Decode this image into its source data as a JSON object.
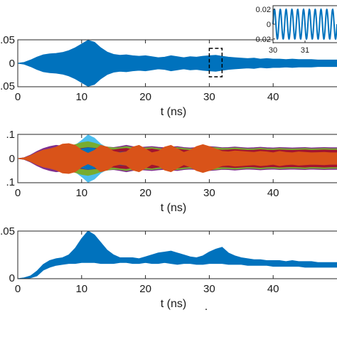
{
  "chart_data": [
    {
      "type": "area",
      "panel": "top",
      "xlabel": "t (ns)",
      "ylabel": "",
      "xlim": [
        0,
        50
      ],
      "ylim": [
        -0.05,
        0.05
      ],
      "xticks": [
        0,
        10,
        20,
        30,
        40
      ],
      "yticks": [
        -0.05,
        0,
        0.05
      ],
      "ytick_labels": [
        ".05",
        "0",
        ".05"
      ],
      "grid": false,
      "highlight_box_x": [
        30,
        32
      ],
      "colors": {
        "fill": "#0072BD",
        "box": "#000000"
      },
      "series": [
        {
          "x": [
            0,
            1,
            2,
            3,
            4,
            5,
            6,
            7,
            8,
            9,
            10,
            11,
            12,
            13,
            14,
            15,
            16,
            17,
            18,
            19,
            20,
            21,
            22,
            23,
            24,
            25,
            26,
            27,
            28,
            29,
            30,
            31,
            32,
            33,
            34,
            35,
            36,
            37,
            38,
            39,
            40,
            41,
            42,
            43,
            44,
            45,
            46,
            47,
            48,
            49,
            50
          ],
          "envelope": [
            0,
            0.002,
            0.007,
            0.013,
            0.018,
            0.02,
            0.021,
            0.023,
            0.027,
            0.033,
            0.041,
            0.049,
            0.045,
            0.033,
            0.024,
            0.019,
            0.017,
            0.018,
            0.016,
            0.015,
            0.016,
            0.014,
            0.012,
            0.013,
            0.016,
            0.014,
            0.012,
            0.014,
            0.013,
            0.015,
            0.016,
            0.017,
            0.015,
            0.013,
            0.012,
            0.011,
            0.01,
            0.011,
            0.009,
            0.01,
            0.009,
            0.009,
            0.008,
            0.009,
            0.008,
            0.008,
            0.008,
            0.007,
            0.007,
            0.007,
            0.007
          ]
        }
      ]
    },
    {
      "type": "line",
      "panel": "top-inset",
      "xlabel": "",
      "ylabel": "",
      "xlim": [
        30,
        32
      ],
      "ylim": [
        -0.025,
        0.025
      ],
      "xticks": [
        30,
        31
      ],
      "yticks": [
        0.02,
        0,
        -0.02
      ],
      "ytick_labels": [
        "0.02",
        "0",
        "-0.02"
      ],
      "series": [
        {
          "amplitude": 0.02,
          "cycles_per_ns": 5.5
        }
      ]
    },
    {
      "type": "area",
      "panel": "middle",
      "xlabel": "t (ns)",
      "ylabel": "",
      "xlim": [
        0,
        50
      ],
      "ylim": [
        -0.1,
        0.1
      ],
      "xticks": [
        0,
        10,
        20,
        30,
        40
      ],
      "yticks": [
        -0.1,
        0,
        0.1
      ],
      "ytick_labels": [
        ".1",
        "0",
        ".1"
      ],
      "grid": false,
      "x": [
        0,
        1,
        2,
        3,
        4,
        5,
        6,
        7,
        8,
        9,
        10,
        11,
        12,
        13,
        14,
        15,
        16,
        17,
        18,
        19,
        20,
        21,
        22,
        23,
        24,
        25,
        26,
        27,
        28,
        29,
        30,
        31,
        32,
        33,
        34,
        35,
        36,
        37,
        38,
        39,
        40,
        41,
        42,
        43,
        44,
        45,
        46,
        47,
        48,
        49,
        50
      ],
      "series": [
        {
          "color": "#4DBEEE",
          "envelope": [
            0,
            0.003,
            0.012,
            0.022,
            0.028,
            0.032,
            0.035,
            0.04,
            0.045,
            0.055,
            0.075,
            0.098,
            0.085,
            0.06,
            0.045,
            0.038,
            0.035,
            0.036,
            0.033,
            0.03,
            0.032,
            0.03,
            0.028,
            0.03,
            0.034,
            0.03,
            0.028,
            0.03,
            0.03,
            0.034,
            0.036,
            0.038,
            0.034,
            0.03,
            0.028,
            0.026,
            0.025,
            0.026,
            0.024,
            0.025,
            0.024,
            0.024,
            0.023,
            0.024,
            0.023,
            0.023,
            0.023,
            0.022,
            0.022,
            0.022,
            0.022
          ]
        },
        {
          "color": "#7E2F8E",
          "envelope": [
            0,
            0.004,
            0.015,
            0.03,
            0.042,
            0.05,
            0.055,
            0.052,
            0.048,
            0.05,
            0.055,
            0.06,
            0.056,
            0.05,
            0.048,
            0.046,
            0.05,
            0.055,
            0.05,
            0.046,
            0.048,
            0.05,
            0.047,
            0.045,
            0.048,
            0.05,
            0.046,
            0.044,
            0.046,
            0.048,
            0.05,
            0.048,
            0.045,
            0.046,
            0.048,
            0.046,
            0.044,
            0.045,
            0.047,
            0.045,
            0.044,
            0.046,
            0.045,
            0.044,
            0.045,
            0.046,
            0.044,
            0.045,
            0.046,
            0.045,
            0.045
          ]
        },
        {
          "color": "#EDB120",
          "envelope": [
            0,
            0.003,
            0.01,
            0.02,
            0.03,
            0.036,
            0.04,
            0.038,
            0.036,
            0.04,
            0.045,
            0.05,
            0.046,
            0.042,
            0.04,
            0.038,
            0.042,
            0.044,
            0.04,
            0.038,
            0.04,
            0.042,
            0.038,
            0.036,
            0.04,
            0.042,
            0.038,
            0.036,
            0.038,
            0.04,
            0.042,
            0.04,
            0.037,
            0.038,
            0.04,
            0.038,
            0.036,
            0.037,
            0.039,
            0.037,
            0.036,
            0.038,
            0.037,
            0.036,
            0.037,
            0.038,
            0.036,
            0.037,
            0.038,
            0.037,
            0.037
          ]
        },
        {
          "color": "#77AC30",
          "envelope": [
            0,
            0.003,
            0.012,
            0.024,
            0.034,
            0.04,
            0.044,
            0.046,
            0.05,
            0.058,
            0.066,
            0.07,
            0.064,
            0.055,
            0.048,
            0.044,
            0.046,
            0.05,
            0.046,
            0.042,
            0.044,
            0.046,
            0.042,
            0.04,
            0.044,
            0.046,
            0.042,
            0.04,
            0.042,
            0.045,
            0.047,
            0.045,
            0.042,
            0.042,
            0.044,
            0.042,
            0.04,
            0.041,
            0.043,
            0.041,
            0.04,
            0.042,
            0.041,
            0.04,
            0.041,
            0.042,
            0.04,
            0.041,
            0.042,
            0.041,
            0.041
          ]
        },
        {
          "color": "#A2142F",
          "envelope": [
            0,
            0.003,
            0.011,
            0.022,
            0.03,
            0.035,
            0.038,
            0.036,
            0.034,
            0.037,
            0.042,
            0.046,
            0.043,
            0.04,
            0.038,
            0.036,
            0.04,
            0.042,
            0.038,
            0.036,
            0.038,
            0.04,
            0.036,
            0.034,
            0.038,
            0.04,
            0.036,
            0.034,
            0.036,
            0.038,
            0.04,
            0.038,
            0.035,
            0.036,
            0.038,
            0.036,
            0.034,
            0.035,
            0.037,
            0.035,
            0.034,
            0.036,
            0.035,
            0.034,
            0.035,
            0.036,
            0.034,
            0.035,
            0.036,
            0.035,
            0.035
          ]
        },
        {
          "color": "#0072BD",
          "envelope": [
            0,
            0.002,
            0.008,
            0.016,
            0.022,
            0.026,
            0.028,
            0.03,
            0.032,
            0.036,
            0.04,
            0.045,
            0.042,
            0.034,
            0.028,
            0.025,
            0.026,
            0.028,
            0.025,
            0.023,
            0.025,
            0.024,
            0.022,
            0.023,
            0.026,
            0.024,
            0.022,
            0.024,
            0.023,
            0.025,
            0.026,
            0.027,
            0.025,
            0.023,
            0.022,
            0.021,
            0.02,
            0.021,
            0.019,
            0.02,
            0.019,
            0.019,
            0.018,
            0.019,
            0.018,
            0.018,
            0.018,
            0.017,
            0.017,
            0.017,
            0.017
          ]
        },
        {
          "color": "#D95319",
          "envelope": [
            0,
            0.003,
            0.012,
            0.025,
            0.035,
            0.04,
            0.048,
            0.06,
            0.062,
            0.055,
            0.035,
            0.022,
            0.034,
            0.055,
            0.048,
            0.03,
            0.024,
            0.028,
            0.048,
            0.055,
            0.04,
            0.024,
            0.03,
            0.048,
            0.055,
            0.04,
            0.026,
            0.035,
            0.05,
            0.058,
            0.05,
            0.04,
            0.03,
            0.028,
            0.032,
            0.03,
            0.028,
            0.026,
            0.03,
            0.028,
            0.024,
            0.03,
            0.026,
            0.024,
            0.028,
            0.026,
            0.024,
            0.025,
            0.026,
            0.024,
            0.024
          ]
        }
      ]
    },
    {
      "type": "area",
      "panel": "bottom",
      "xlabel": "t (ns)",
      "ylabel": "",
      "xlim": [
        0,
        50
      ],
      "ylim": [
        0,
        0.05
      ],
      "xticks": [
        0,
        10,
        20,
        30,
        40
      ],
      "yticks": [
        0,
        0.05
      ],
      "ytick_labels": [
        "0",
        ".05"
      ],
      "grid": false,
      "trailing_text": ".",
      "colors": {
        "fill": "#0072BD"
      },
      "series": [
        {
          "x": [
            0,
            1,
            2,
            3,
            4,
            5,
            6,
            7,
            8,
            9,
            10,
            11,
            12,
            13,
            14,
            15,
            16,
            17,
            18,
            19,
            20,
            21,
            22,
            23,
            24,
            25,
            26,
            27,
            28,
            29,
            30,
            31,
            32,
            33,
            34,
            35,
            36,
            37,
            38,
            39,
            40,
            41,
            42,
            43,
            44,
            45,
            46,
            47,
            48,
            49,
            50
          ],
          "upper": [
            0,
            0.001,
            0.003,
            0.008,
            0.015,
            0.019,
            0.021,
            0.022,
            0.025,
            0.032,
            0.042,
            0.05,
            0.046,
            0.038,
            0.03,
            0.025,
            0.022,
            0.022,
            0.022,
            0.021,
            0.023,
            0.025,
            0.027,
            0.028,
            0.029,
            0.027,
            0.025,
            0.023,
            0.022,
            0.024,
            0.028,
            0.031,
            0.033,
            0.027,
            0.024,
            0.022,
            0.021,
            0.02,
            0.02,
            0.019,
            0.019,
            0.019,
            0.018,
            0.019,
            0.018,
            0.018,
            0.018,
            0.017,
            0.017,
            0.017,
            0.017
          ],
          "lower": [
            0,
            0,
            0.001,
            0.003,
            0.009,
            0.012,
            0.014,
            0.015,
            0.016,
            0.016,
            0.017,
            0.017,
            0.017,
            0.016,
            0.016,
            0.016,
            0.017,
            0.017,
            0.016,
            0.016,
            0.017,
            0.016,
            0.016,
            0.017,
            0.016,
            0.015,
            0.016,
            0.016,
            0.015,
            0.015,
            0.016,
            0.016,
            0.016,
            0.015,
            0.015,
            0.015,
            0.014,
            0.014,
            0.014,
            0.014,
            0.013,
            0.013,
            0.013,
            0.013,
            0.013,
            0.012,
            0.012,
            0.012,
            0.012,
            0.012,
            0.012
          ]
        }
      ]
    }
  ]
}
